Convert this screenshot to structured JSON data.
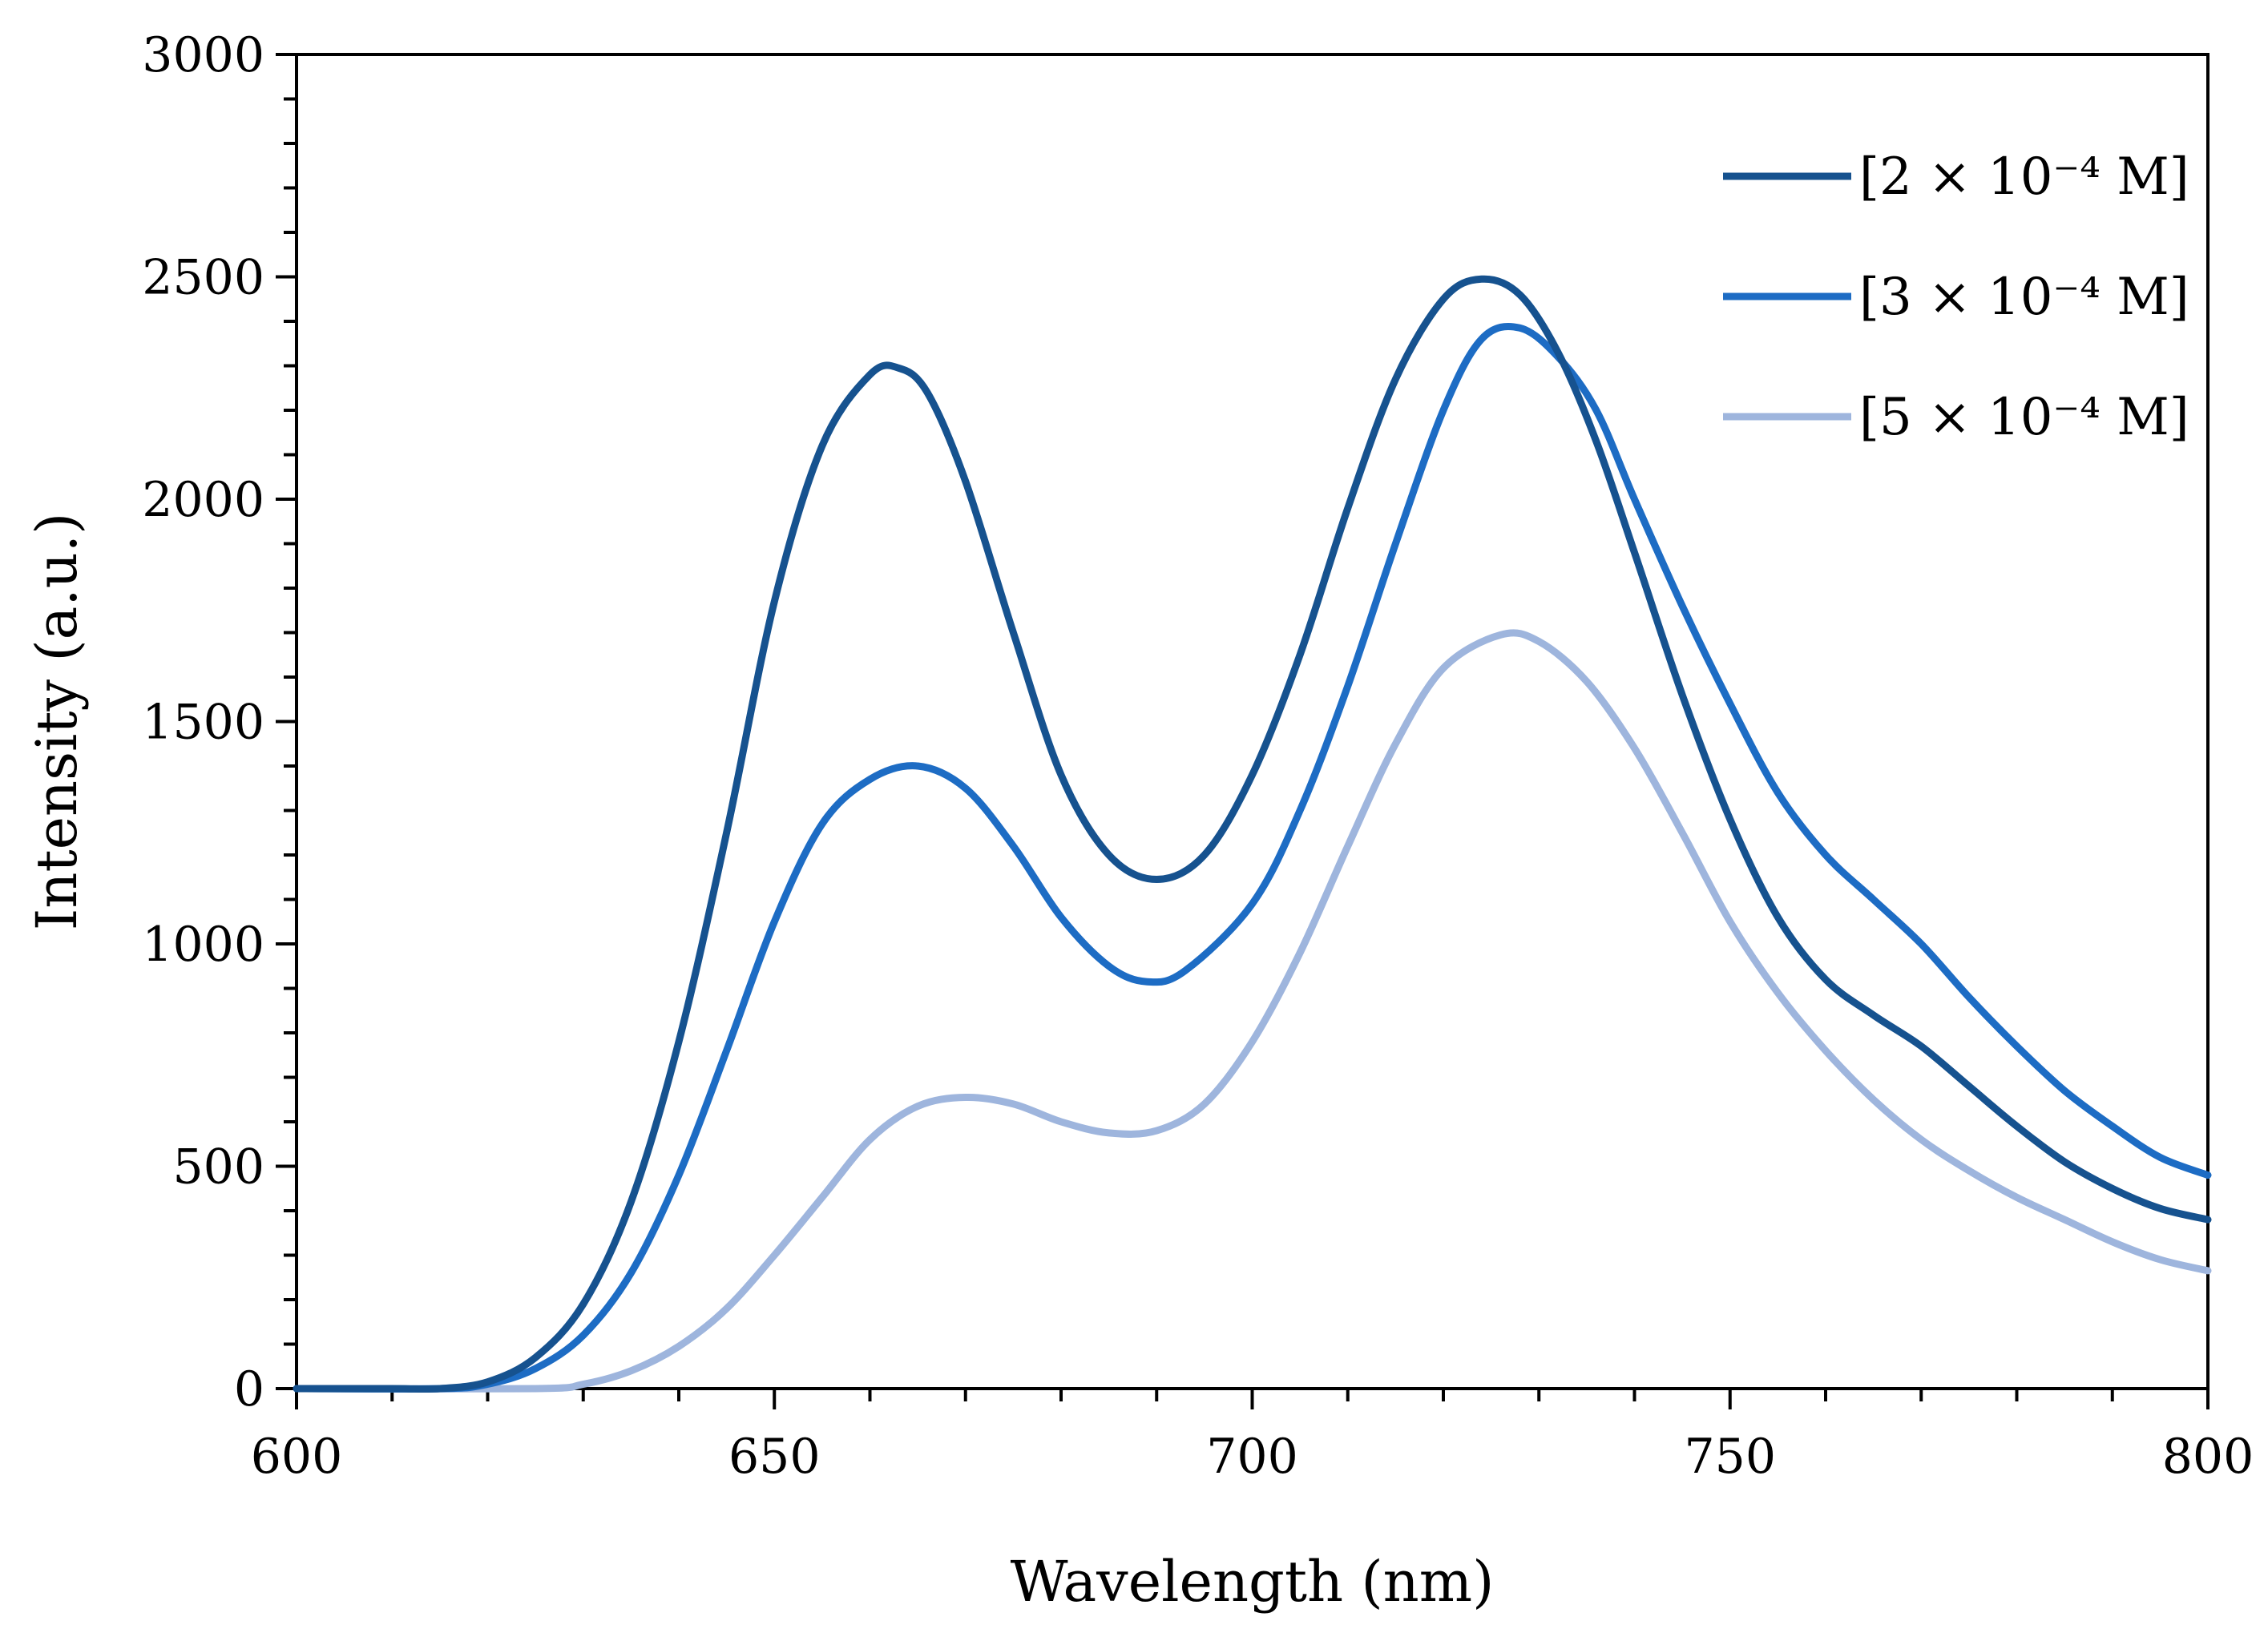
{
  "chart_data": {
    "type": "line",
    "title": "",
    "xlabel": "Wavelength (nm)",
    "ylabel": "Intensity (a.u.)",
    "xlim": [
      600,
      800
    ],
    "ylim": [
      0,
      3000
    ],
    "x_ticks": [
      "600",
      "650",
      "700",
      "750",
      "800"
    ],
    "y_ticks": [
      "0",
      "500",
      "1000",
      "1500",
      "2000",
      "2500",
      "3000"
    ],
    "x_minor_step": 10,
    "y_minor_step": 100,
    "grid": false,
    "legend_position": "top-right",
    "series": [
      {
        "name": "[2 × 10⁻⁴ M]",
        "color": "#16528f",
        "points": [
          [
            600,
            0
          ],
          [
            610,
            0
          ],
          [
            615,
            0
          ],
          [
            620,
            15
          ],
          [
            625,
            70
          ],
          [
            630,
            190
          ],
          [
            635,
            420
          ],
          [
            640,
            780
          ],
          [
            645,
            1250
          ],
          [
            650,
            1770
          ],
          [
            655,
            2120
          ],
          [
            660,
            2280
          ],
          [
            663,
            2295
          ],
          [
            666,
            2240
          ],
          [
            670,
            2040
          ],
          [
            675,
            1700
          ],
          [
            680,
            1380
          ],
          [
            685,
            1200
          ],
          [
            690,
            1145
          ],
          [
            695,
            1200
          ],
          [
            700,
            1380
          ],
          [
            705,
            1650
          ],
          [
            710,
            1980
          ],
          [
            715,
            2270
          ],
          [
            720,
            2450
          ],
          [
            724,
            2495
          ],
          [
            728,
            2460
          ],
          [
            732,
            2330
          ],
          [
            736,
            2130
          ],
          [
            740,
            1880
          ],
          [
            745,
            1560
          ],
          [
            750,
            1280
          ],
          [
            755,
            1060
          ],
          [
            760,
            920
          ],
          [
            765,
            840
          ],
          [
            770,
            770
          ],
          [
            775,
            680
          ],
          [
            780,
            590
          ],
          [
            785,
            510
          ],
          [
            790,
            450
          ],
          [
            795,
            405
          ],
          [
            800,
            380
          ]
        ]
      },
      {
        "name": "[3 × 10⁻⁴ M]",
        "color": "#1d6cc4",
        "points": [
          [
            600,
            0
          ],
          [
            615,
            0
          ],
          [
            620,
            10
          ],
          [
            625,
            45
          ],
          [
            630,
            120
          ],
          [
            635,
            260
          ],
          [
            640,
            480
          ],
          [
            645,
            760
          ],
          [
            650,
            1050
          ],
          [
            655,
            1270
          ],
          [
            660,
            1370
          ],
          [
            665,
            1400
          ],
          [
            670,
            1350
          ],
          [
            675,
            1220
          ],
          [
            680,
            1060
          ],
          [
            685,
            950
          ],
          [
            689,
            915
          ],
          [
            693,
            940
          ],
          [
            700,
            1090
          ],
          [
            705,
            1300
          ],
          [
            710,
            1580
          ],
          [
            715,
            1900
          ],
          [
            720,
            2200
          ],
          [
            724,
            2360
          ],
          [
            728,
            2385
          ],
          [
            732,
            2320
          ],
          [
            736,
            2200
          ],
          [
            740,
            2000
          ],
          [
            745,
            1760
          ],
          [
            750,
            1540
          ],
          [
            755,
            1340
          ],
          [
            760,
            1200
          ],
          [
            765,
            1100
          ],
          [
            770,
            1000
          ],
          [
            775,
            880
          ],
          [
            780,
            770
          ],
          [
            785,
            670
          ],
          [
            790,
            590
          ],
          [
            795,
            520
          ],
          [
            800,
            480
          ]
        ]
      },
      {
        "name": "[5 × 10⁻⁴ M]",
        "color": "#9eb5dd",
        "points": [
          [
            600,
            0
          ],
          [
            625,
            0
          ],
          [
            630,
            10
          ],
          [
            635,
            40
          ],
          [
            640,
            95
          ],
          [
            645,
            180
          ],
          [
            650,
            300
          ],
          [
            655,
            430
          ],
          [
            660,
            560
          ],
          [
            665,
            635
          ],
          [
            670,
            655
          ],
          [
            675,
            640
          ],
          [
            680,
            600
          ],
          [
            685,
            575
          ],
          [
            690,
            580
          ],
          [
            695,
            640
          ],
          [
            700,
            780
          ],
          [
            705,
            980
          ],
          [
            710,
            1220
          ],
          [
            715,
            1450
          ],
          [
            720,
            1620
          ],
          [
            726,
            1695
          ],
          [
            730,
            1680
          ],
          [
            735,
            1590
          ],
          [
            740,
            1440
          ],
          [
            745,
            1250
          ],
          [
            750,
            1050
          ],
          [
            755,
            890
          ],
          [
            760,
            760
          ],
          [
            765,
            650
          ],
          [
            770,
            560
          ],
          [
            775,
            490
          ],
          [
            780,
            430
          ],
          [
            785,
            380
          ],
          [
            790,
            330
          ],
          [
            795,
            290
          ],
          [
            800,
            265
          ]
        ]
      }
    ]
  }
}
